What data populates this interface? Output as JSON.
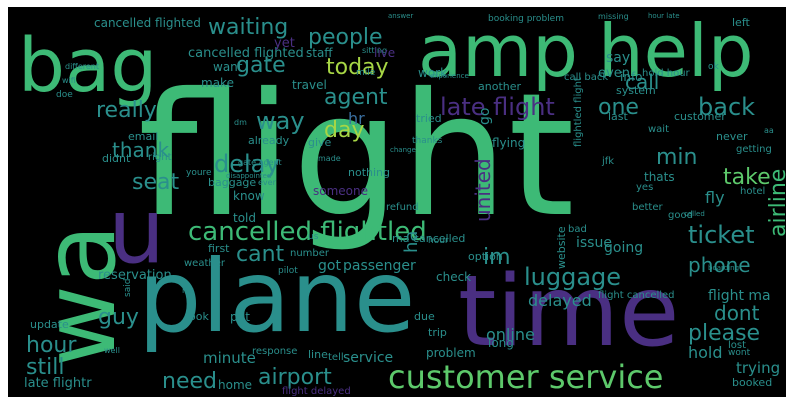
{
  "palette": {
    "bg": "#000000",
    "green": "#3dba76",
    "lime": "#a7d645",
    "teal": "#2a8f8c",
    "blue": "#3a6fa0",
    "purple": "#4a2f82",
    "deep": "#3e1b6a",
    "mint": "#5dc96b",
    "yellow": "#d6d83a"
  },
  "words": [
    {
      "text": "flight"
    },
    {
      "text": "amp"
    },
    {
      "text": "help"
    },
    {
      "text": "bag"
    },
    {
      "text": "wa"
    },
    {
      "text": "u"
    },
    {
      "text": "plane"
    },
    {
      "text": "time"
    },
    {
      "text": "customer service"
    },
    {
      "text": "cancelled flightled"
    },
    {
      "text": "late flight"
    },
    {
      "text": "waiting"
    },
    {
      "text": "people"
    },
    {
      "text": "gate"
    },
    {
      "text": "today"
    },
    {
      "text": "agent"
    },
    {
      "text": "way"
    },
    {
      "text": "really"
    },
    {
      "text": "thank"
    },
    {
      "text": "delay"
    },
    {
      "text": "seat"
    },
    {
      "text": "day"
    },
    {
      "text": "united"
    },
    {
      "text": "one"
    },
    {
      "text": "back"
    },
    {
      "text": "call"
    },
    {
      "text": "min"
    },
    {
      "text": "take"
    },
    {
      "text": "ticket"
    },
    {
      "text": "airline"
    },
    {
      "text": "cant"
    },
    {
      "text": "im"
    },
    {
      "text": "phone"
    },
    {
      "text": "luggage"
    },
    {
      "text": "dont"
    },
    {
      "text": "please"
    },
    {
      "text": "guy"
    },
    {
      "text": "hour"
    },
    {
      "text": "still"
    },
    {
      "text": "need"
    },
    {
      "text": "airport"
    },
    {
      "text": "cancelled flighted"
    },
    {
      "text": "got"
    },
    {
      "text": "passenger"
    },
    {
      "text": "reservation"
    },
    {
      "text": "delayed"
    },
    {
      "text": "flight ma"
    },
    {
      "text": "trying"
    },
    {
      "text": "hold"
    },
    {
      "text": "minute"
    },
    {
      "text": "late flightr"
    },
    {
      "text": "home"
    },
    {
      "text": "update"
    },
    {
      "text": "service"
    },
    {
      "text": "online"
    },
    {
      "text": "issue"
    },
    {
      "text": "going"
    },
    {
      "text": "hr"
    },
    {
      "text": "ha"
    },
    {
      "text": "go"
    },
    {
      "text": "fly"
    },
    {
      "text": "know"
    },
    {
      "text": "told"
    },
    {
      "text": "thats"
    },
    {
      "text": "make"
    },
    {
      "text": "want"
    },
    {
      "text": "different"
    },
    {
      "text": "staff"
    },
    {
      "text": "say"
    },
    {
      "text": "even"
    },
    {
      "text": "info"
    },
    {
      "text": "work"
    },
    {
      "text": "travel"
    },
    {
      "text": "hold hour"
    },
    {
      "text": "call back"
    },
    {
      "text": "system"
    },
    {
      "text": "another"
    },
    {
      "text": "tried"
    },
    {
      "text": "flying"
    },
    {
      "text": "customer"
    },
    {
      "text": "last"
    },
    {
      "text": "wait"
    },
    {
      "text": "never"
    },
    {
      "text": "email"
    },
    {
      "text": "didnt"
    },
    {
      "text": "already"
    },
    {
      "text": "right"
    },
    {
      "text": "give"
    },
    {
      "text": "someone"
    },
    {
      "text": "nothing"
    },
    {
      "text": "baggage"
    },
    {
      "text": "refund"
    },
    {
      "text": "first"
    },
    {
      "text": "bad"
    },
    {
      "text": "good"
    },
    {
      "text": "better"
    },
    {
      "text": "getting"
    },
    {
      "text": "hotel"
    },
    {
      "text": "check"
    },
    {
      "text": "problem"
    },
    {
      "text": "long"
    },
    {
      "text": "lost"
    },
    {
      "text": "flight cancelled"
    },
    {
      "text": "flightled flight"
    },
    {
      "text": "ma cancelled"
    },
    {
      "text": "number"
    },
    {
      "text": "option"
    },
    {
      "text": "look"
    },
    {
      "text": "put"
    },
    {
      "text": "response"
    },
    {
      "text": "line"
    },
    {
      "text": "tell"
    },
    {
      "text": "due"
    },
    {
      "text": "trip"
    },
    {
      "text": "booked"
    },
    {
      "text": "flight delayed"
    },
    {
      "text": "website"
    },
    {
      "text": "jfk"
    },
    {
      "text": "weather"
    },
    {
      "text": "pilot"
    },
    {
      "text": "booking problem"
    },
    {
      "text": "left"
    },
    {
      "text": "hour late"
    },
    {
      "text": "missing"
    },
    {
      "text": "answer"
    },
    {
      "text": "yes"
    },
    {
      "text": "said"
    },
    {
      "text": "mile"
    },
    {
      "text": "made"
    },
    {
      "text": "wont"
    },
    {
      "text": "youre"
    },
    {
      "text": "experience"
    },
    {
      "text": "change"
    },
    {
      "text": "boarding"
    },
    {
      "text": "called"
    },
    {
      "text": "disappointed"
    },
    {
      "text": "doe"
    },
    {
      "text": "wifi"
    },
    {
      "text": "ever"
    },
    {
      "text": "thanks"
    },
    {
      "text": "sitting"
    },
    {
      "text": "yet"
    },
    {
      "text": "live"
    },
    {
      "text": "gate agent"
    },
    {
      "text": "cancelled flighted"
    },
    {
      "text": "hour"
    },
    {
      "text": "aa"
    },
    {
      "text": "dm"
    },
    {
      "text": "lax"
    },
    {
      "text": "well"
    },
    {
      "text": "us"
    },
    {
      "text": "ok"
    }
  ]
}
